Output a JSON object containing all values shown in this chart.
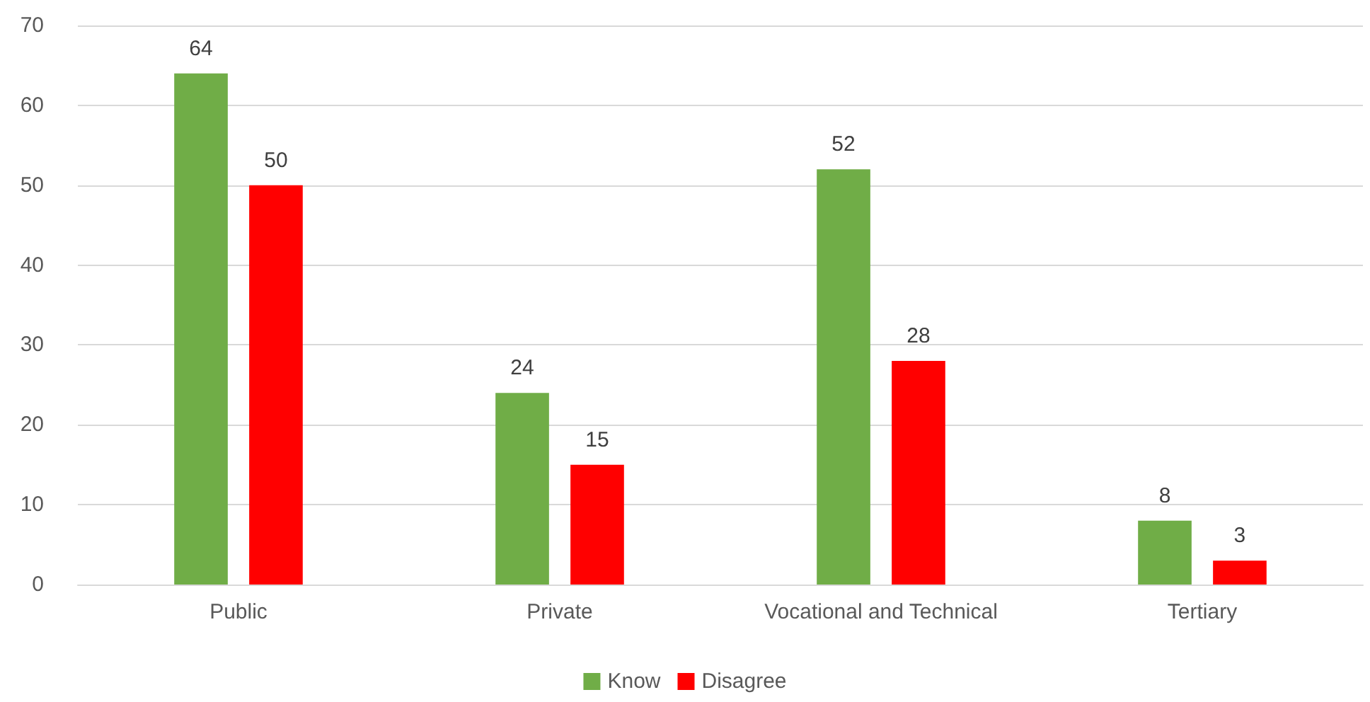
{
  "chart_data": {
    "type": "bar",
    "categories": [
      "Public",
      "Private",
      "Vocational and Technical",
      "Tertiary"
    ],
    "series": [
      {
        "name": "Know",
        "color": "#70ad47",
        "values": [
          64,
          24,
          52,
          8
        ]
      },
      {
        "name": "Disagree",
        "color": "#ff0000",
        "values": [
          50,
          15,
          28,
          3
        ]
      }
    ],
    "ylim": [
      0,
      70
    ],
    "yticks": [
      0,
      10,
      20,
      30,
      40,
      50,
      60,
      70
    ],
    "grid": "y",
    "legend": "bottom",
    "data_labels": true
  }
}
